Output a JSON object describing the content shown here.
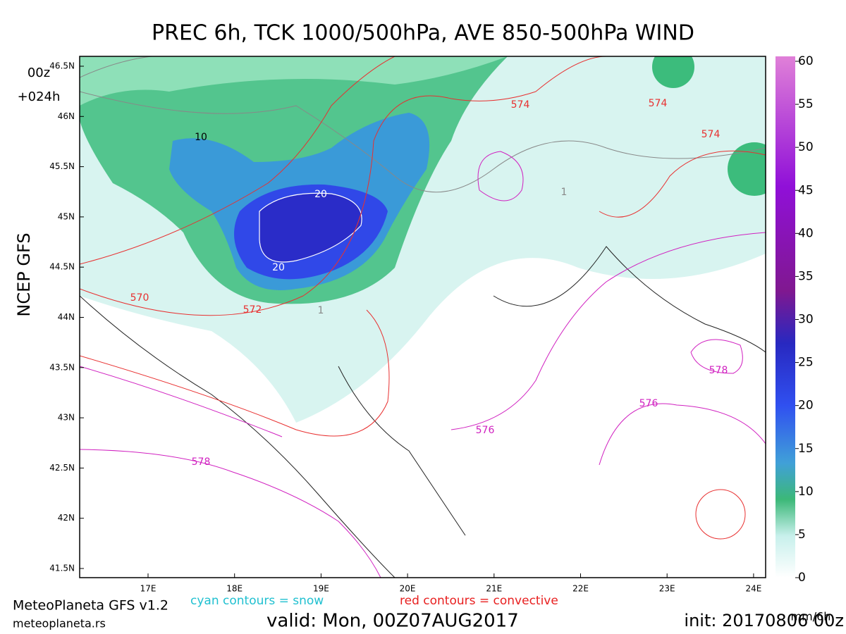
{
  "header": {
    "title": "PREC 6h, TCK 1000/500hPa, AVE 850-500hPa WIND",
    "run": "00z",
    "lead": "+024h",
    "side_label": "NCEP GFS"
  },
  "map": {
    "lat_labels": [
      "46.5N",
      "46N",
      "45.5N",
      "45N",
      "44.5N",
      "44N",
      "43.5N",
      "43N",
      "42.5N",
      "42N",
      "41.5N"
    ],
    "lon_labels": [
      "17E",
      "18E",
      "19E",
      "20E",
      "21E",
      "22E",
      "23E",
      "24E"
    ],
    "contour_labels": [
      "10",
      "20",
      "20",
      "574",
      "574",
      "574",
      "570",
      "572",
      "576",
      "576",
      "578",
      "578",
      "1",
      "1"
    ]
  },
  "colorbar": {
    "range": [
      0,
      60
    ],
    "ticks": [
      0,
      5,
      10,
      15,
      20,
      25,
      30,
      35,
      40,
      45,
      50,
      55,
      60
    ],
    "unit": "mm/6h"
  },
  "footer": {
    "brand": "MeteoPlaneta GFS v1.2",
    "site": "meteoplaneta.rs",
    "snow_note": "cyan contours = snow",
    "convective_note": "red contours = convective",
    "valid": "valid: Mon, 00Z07AUG2017",
    "init": "init: 20170806 00z"
  }
}
